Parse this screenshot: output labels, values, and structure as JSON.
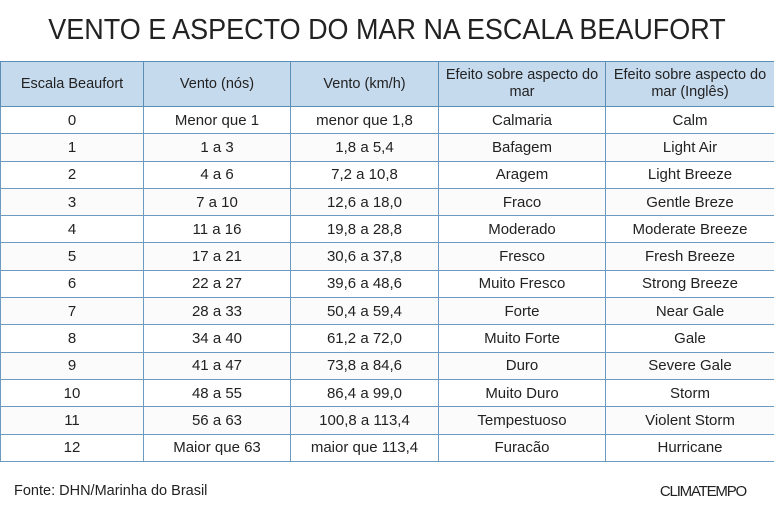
{
  "title": "VENTO E ASPECTO DO MAR NA ESCALA BEAUFORT",
  "headers": [
    "Escala Beaufort",
    "Vento (nós)",
    "Vento (km/h)",
    "Efeito sobre aspecto do mar",
    "Efeito sobre aspecto do mar (Inglês)"
  ],
  "rows": [
    [
      "0",
      "Menor que 1",
      "menor que 1,8",
      "Calmaria",
      "Calm"
    ],
    [
      "1",
      "1 a 3",
      "1,8 a 5,4",
      "Bafagem",
      "Light Air"
    ],
    [
      "2",
      "4 a 6",
      "7,2 a 10,8",
      "Aragem",
      "Light Breeze"
    ],
    [
      "3",
      "7 a 10",
      "12,6 a 18,0",
      "Fraco",
      "Gentle Breze"
    ],
    [
      "4",
      "11 a 16",
      "19,8 a 28,8",
      "Moderado",
      "Moderate Breeze"
    ],
    [
      "5",
      "17 a 21",
      "30,6 a 37,8",
      "Fresco",
      "Fresh Breeze"
    ],
    [
      "6",
      "22 a 27",
      "39,6 a 48,6",
      "Muito Fresco",
      "Strong Breeze"
    ],
    [
      "7",
      "28 a 33",
      "50,4 a 59,4",
      "Forte",
      "Near Gale"
    ],
    [
      "8",
      "34 a 40",
      "61,2 a 72,0",
      "Muito Forte",
      "Gale"
    ],
    [
      "9",
      "41 a 47",
      "73,8  a 84,6",
      "Duro",
      "Severe Gale"
    ],
    [
      "10",
      "48 a 55",
      "86,4 a 99,0",
      "Muito Duro",
      "Storm"
    ],
    [
      "11",
      "56 a 63",
      "100,8  a 113,4",
      "Tempestuoso",
      "Violent Storm"
    ],
    [
      "12",
      "Maior que 63",
      "maior que 113,4",
      "Furacão",
      "Hurricane"
    ]
  ],
  "source": "Fonte: DHN/Marinha do Brasil",
  "logo": "CLIMATEMPO"
}
